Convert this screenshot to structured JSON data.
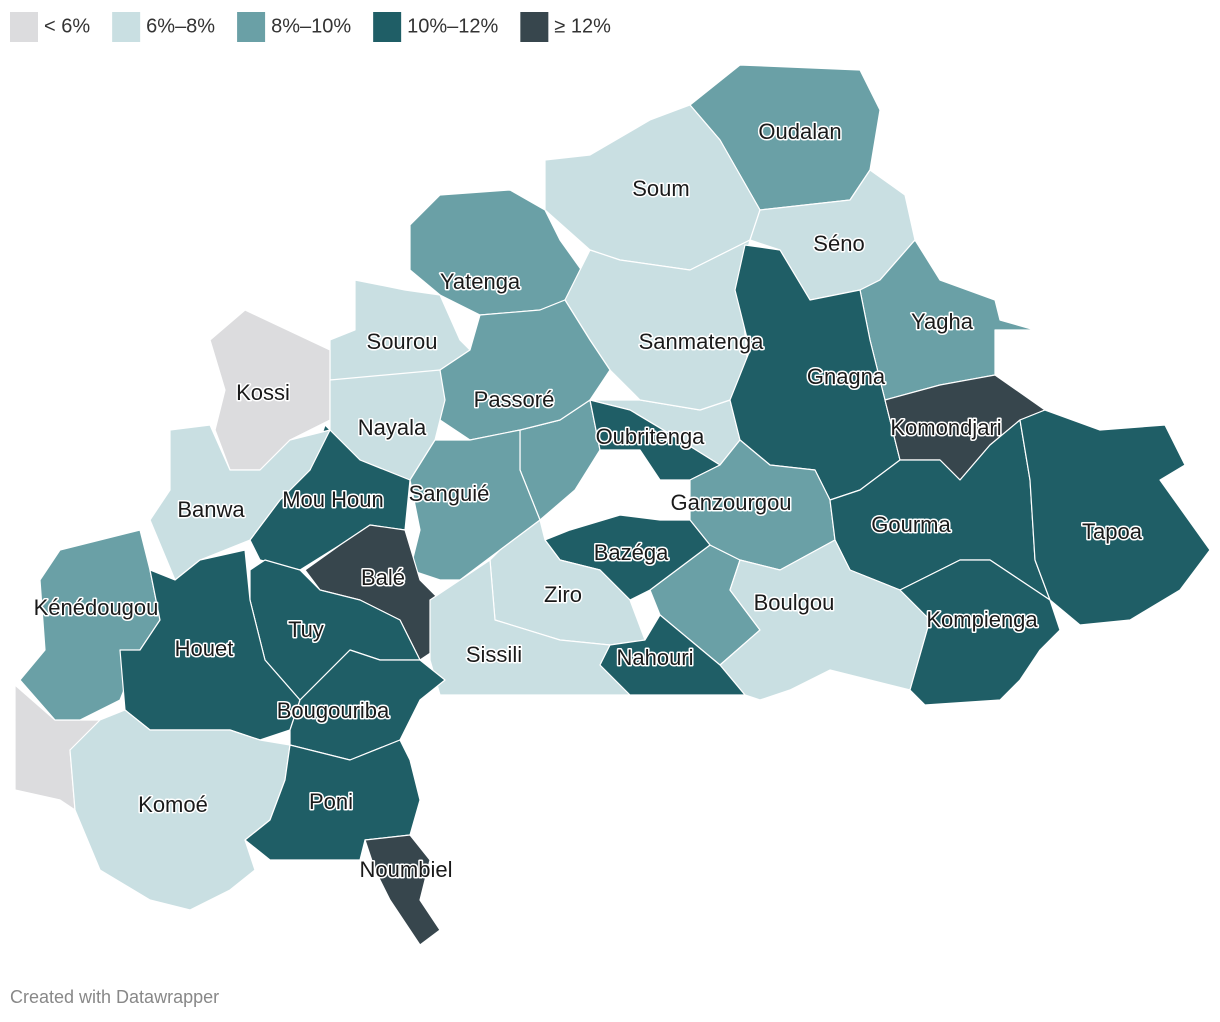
{
  "legend": [
    {
      "label": "< 6%",
      "color": "#dcdcde"
    },
    {
      "label": "6%–8%",
      "color": "#c9dfe2"
    },
    {
      "label": "8%–10%",
      "color": "#6aa0a6"
    },
    {
      "label": "10%–12%",
      "color": "#1f5e66"
    },
    {
      "label": "≥ 12%",
      "color": "#37464d"
    }
  ],
  "provinces": [
    {
      "name": "Oudalan",
      "class": 2
    },
    {
      "name": "Soum",
      "class": 1
    },
    {
      "name": "Séno",
      "class": 1
    },
    {
      "name": "Yatenga",
      "class": 2
    },
    {
      "name": "Sourou",
      "class": 1
    },
    {
      "name": "Sanmatenga",
      "class": 1
    },
    {
      "name": "Yagha",
      "class": 2
    },
    {
      "name": "Gnagna",
      "class": 3
    },
    {
      "name": "Kossi",
      "class": 0
    },
    {
      "name": "Passoré",
      "class": 2
    },
    {
      "name": "Nayala",
      "class": 1
    },
    {
      "name": "Oubritenga",
      "class": 3
    },
    {
      "name": "Komondjari",
      "class": 4
    },
    {
      "name": "Mou Houn",
      "class": 3
    },
    {
      "name": "Sanguié",
      "class": 2
    },
    {
      "name": "Ganzourgou",
      "class": 2
    },
    {
      "name": "Banwa",
      "class": 1
    },
    {
      "name": "Gourma",
      "class": 3
    },
    {
      "name": "Tapoa",
      "class": 3
    },
    {
      "name": "Bazéga",
      "class": 3
    },
    {
      "name": "Ziro",
      "class": 1
    },
    {
      "name": "Balé",
      "class": 4
    },
    {
      "name": "Boulgou",
      "class": 1
    },
    {
      "name": "Kénédougou",
      "class": 2
    },
    {
      "name": "Kompienga",
      "class": 3
    },
    {
      "name": "Tuy",
      "class": 3
    },
    {
      "name": "Houet",
      "class": 3
    },
    {
      "name": "Sissili",
      "class": 1
    },
    {
      "name": "Nahouri",
      "class": 3
    },
    {
      "name": "Bougouriba",
      "class": 3
    },
    {
      "name": "Komoé",
      "class": 1
    },
    {
      "name": "Poni",
      "class": 3
    },
    {
      "name": "Noumbiel",
      "class": 4
    }
  ],
  "footer": "Created with Datawrapper"
}
